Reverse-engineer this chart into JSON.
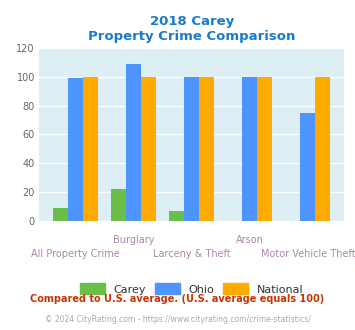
{
  "title_line1": "2018 Carey",
  "title_line2": "Property Crime Comparison",
  "categories": [
    "All Property Crime",
    "Burglary",
    "Larceny & Theft",
    "Arson",
    "Motor Vehicle Theft"
  ],
  "x_labels_top": [
    "",
    "Burglary",
    "",
    "Arson",
    ""
  ],
  "x_labels_bottom": [
    "All Property Crime",
    "",
    "Larceny & Theft",
    "",
    "Motor Vehicle Theft"
  ],
  "carey_values": [
    9,
    22,
    7,
    0,
    0
  ],
  "ohio_values": [
    99,
    109,
    100,
    100,
    75
  ],
  "national_values": [
    100,
    100,
    100,
    100,
    100
  ],
  "carey_color": "#6abf4b",
  "ohio_color": "#4d94ff",
  "national_color": "#ffaa00",
  "ylim": [
    0,
    120
  ],
  "yticks": [
    0,
    20,
    40,
    60,
    80,
    100,
    120
  ],
  "bg_color": "#ddeef5",
  "title_color": "#1a7acc",
  "label_color": "#aa88aa",
  "legend_label_color": "#333333",
  "footnote1": "Compared to U.S. average. (U.S. average equals 100)",
  "footnote2": "© 2024 CityRating.com - https://www.cityrating.com/crime-statistics/",
  "footnote1_color": "#cc3300",
  "footnote2_color": "#aaaaaa"
}
